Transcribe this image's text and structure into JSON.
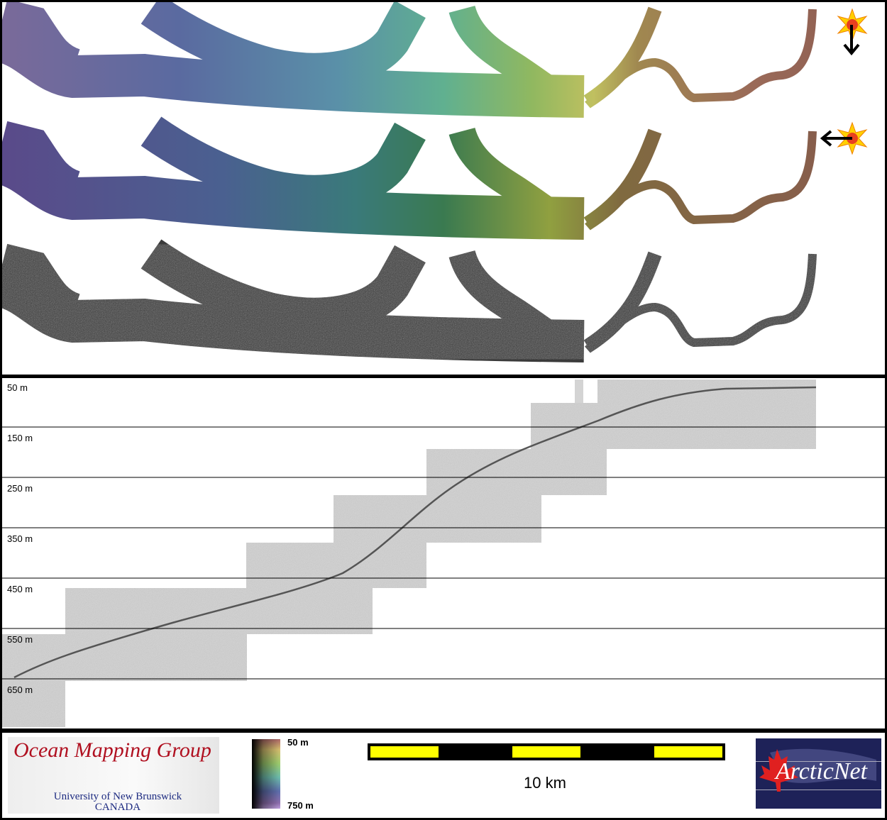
{
  "map": {
    "strips": [
      {
        "name": "bathymetry-illuminated-north",
        "illumination": "north",
        "arrow": "down"
      },
      {
        "name": "bathymetry-illuminated-east",
        "illumination": "east",
        "arrow": "left"
      },
      {
        "name": "backscatter",
        "illumination": null
      }
    ],
    "icons": [
      "sun-icon",
      "arrow-icon"
    ]
  },
  "profile": {
    "depth_labels": [
      "50 m",
      "150 m",
      "250 m",
      "350 m",
      "450 m",
      "550 m",
      "650 m"
    ]
  },
  "legend": {
    "omg_title": "Ocean Mapping Group",
    "omg_line1": "University of New Brunswick",
    "omg_line2": "CANADA",
    "colorbar_top": "50 m",
    "colorbar_bottom": "750 m",
    "scale_label": "10 km",
    "arcticnet_text": "ArcticNet",
    "colors": {
      "scale_yellow": "#ffff00",
      "scale_black": "#000000",
      "omg_red": "#b01020",
      "arctic_navy": "#1e2258"
    }
  }
}
